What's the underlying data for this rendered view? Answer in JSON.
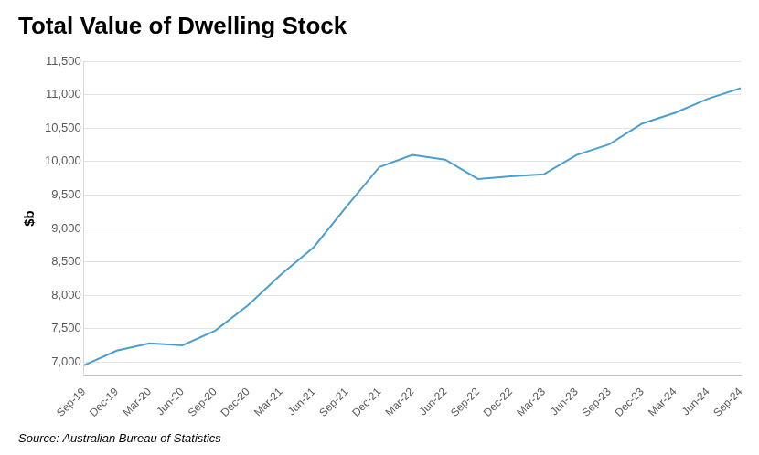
{
  "chart_data": {
    "type": "line",
    "title": "Total Value of Dwelling Stock",
    "y_label": "$b",
    "source": "Source: Australian Bureau of Statistics",
    "categories": [
      "Sep-19",
      "Dec-19",
      "Mar-20",
      "Jun-20",
      "Sep-20",
      "Dec-20",
      "Mar-21",
      "Jun-21",
      "Sep-21",
      "Dec-21",
      "Mar-22",
      "Jun-22",
      "Sep-22",
      "Dec-22",
      "Mar-23",
      "Jun-23",
      "Sep-23",
      "Dec-23",
      "Mar-24",
      "Jun-24",
      "Sep-24"
    ],
    "values": [
      6950,
      7170,
      7280,
      7250,
      7470,
      7850,
      8310,
      8720,
      9330,
      9920,
      10100,
      10030,
      9740,
      9780,
      9810,
      10100,
      10260,
      10570,
      10730,
      10940,
      11100
    ],
    "color": "#4a9fd0",
    "ylim": [
      6800,
      11500
    ],
    "yticks": [
      {
        "value": 7000,
        "label": "7,000"
      },
      {
        "value": 7500,
        "label": "7,500"
      },
      {
        "value": 8000,
        "label": "8,000"
      },
      {
        "value": 8500,
        "label": "8,500"
      },
      {
        "value": 9000,
        "label": "9,000"
      },
      {
        "value": 9500,
        "label": "9,500"
      },
      {
        "value": 10000,
        "label": "10,000"
      },
      {
        "value": 10500,
        "label": "10,500"
      },
      {
        "value": 11000,
        "label": "11,000"
      },
      {
        "value": 11500,
        "label": "11,500"
      }
    ],
    "grid": true
  }
}
